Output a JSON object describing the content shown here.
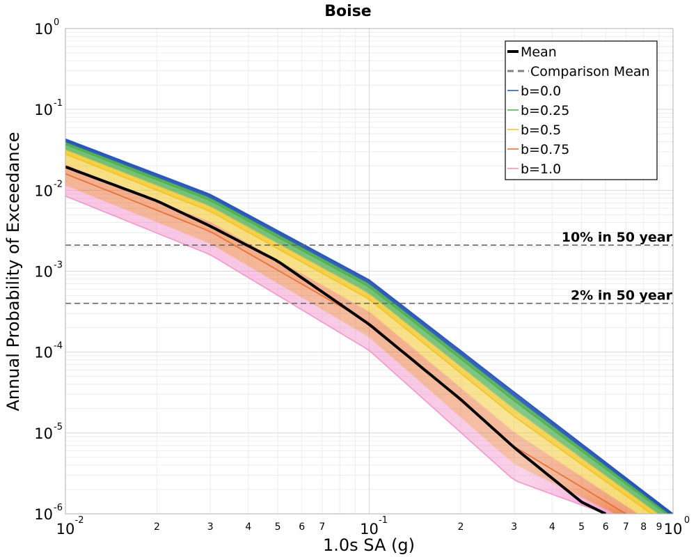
{
  "chart_data": {
    "type": "line",
    "title": "Boise",
    "xlabel": "1.0s SA (g)",
    "ylabel": "Annual Probability of Exceedance",
    "xscale": "log",
    "yscale": "log",
    "xlim": [
      0.01,
      1.0
    ],
    "ylim": [
      1e-06,
      1.0
    ],
    "grid": true,
    "legend_position": "top-right",
    "x_major_ticks": [
      {
        "value": 0.01,
        "base": "10",
        "exp": "-2"
      },
      {
        "value": 0.1,
        "base": "10",
        "exp": "-1"
      },
      {
        "value": 1.0,
        "base": "10",
        "exp": "0"
      }
    ],
    "x_minor_ticks": [
      {
        "value": 0.02,
        "label": "2"
      },
      {
        "value": 0.03,
        "label": "3"
      },
      {
        "value": 0.04,
        "label": "4"
      },
      {
        "value": 0.05,
        "label": "5"
      },
      {
        "value": 0.06,
        "label": "6"
      },
      {
        "value": 0.07,
        "label": "7"
      },
      {
        "value": 0.2,
        "label": "2"
      },
      {
        "value": 0.3,
        "label": "3"
      },
      {
        "value": 0.4,
        "label": "4"
      },
      {
        "value": 0.5,
        "label": "5"
      },
      {
        "value": 0.6,
        "label": "6"
      },
      {
        "value": 0.7,
        "label": "7"
      },
      {
        "value": 0.8,
        "label": "8"
      },
      {
        "value": 0.9,
        "label": "9"
      }
    ],
    "y_major_ticks": [
      {
        "value": 1.0,
        "base": "10",
        "exp": "0"
      },
      {
        "value": 0.1,
        "base": "10",
        "exp": "-1"
      },
      {
        "value": 0.01,
        "base": "10",
        "exp": "-2"
      },
      {
        "value": 0.001,
        "base": "10",
        "exp": "-3"
      },
      {
        "value": 0.0001,
        "base": "10",
        "exp": "-4"
      },
      {
        "value": 1e-05,
        "base": "10",
        "exp": "-5"
      },
      {
        "value": 1e-06,
        "base": "10",
        "exp": "-6"
      }
    ],
    "series": [
      {
        "name": "Mean",
        "color": "#000000",
        "style": "solid",
        "x": [
          0.01,
          0.02,
          0.03,
          0.05,
          0.1,
          0.2,
          0.3,
          0.5,
          0.6
        ],
        "y": [
          0.0195,
          0.0074,
          0.0036,
          0.00133,
          0.00022,
          2.6e-05,
          6.6e-06,
          1.4e-06,
          1e-06
        ]
      },
      {
        "name": "Comparison Mean",
        "color": "#808080",
        "style": "dashed",
        "x": [],
        "y": []
      },
      {
        "name": "b=0.0",
        "color": "#1f4fb4",
        "style": "solid",
        "x": [
          0.01,
          0.03,
          0.1,
          0.3,
          1.0
        ],
        "y": [
          0.043,
          0.0089,
          0.00078,
          3.2e-05,
          1e-06
        ]
      },
      {
        "name": "b=0.25",
        "color": "#4caf50",
        "style": "solid",
        "x": [
          0.01,
          0.03,
          0.1,
          0.3,
          0.95
        ],
        "y": [
          0.037,
          0.0075,
          0.00064,
          2.5e-05,
          1e-06
        ]
      },
      {
        "name": "b=0.5",
        "color": "#f0c419",
        "style": "solid",
        "x": [
          0.01,
          0.03,
          0.1,
          0.3,
          0.85
        ],
        "y": [
          0.028,
          0.0055,
          0.00045,
          1.6e-05,
          1e-06
        ]
      },
      {
        "name": "b=0.75",
        "color": "#e8692a",
        "style": "solid",
        "x": [
          0.01,
          0.03,
          0.1,
          0.3,
          0.7
        ],
        "y": [
          0.016,
          0.0031,
          0.00023,
          6.8e-06,
          1e-06
        ]
      },
      {
        "name": "b=1.0",
        "color": "#f28cc8",
        "style": "solid",
        "x": [
          0.01,
          0.03,
          0.1,
          0.3,
          0.6
        ],
        "y": [
          0.0085,
          0.0016,
          0.000105,
          2.6e-06,
          1e-06
        ]
      }
    ],
    "reference_lines": [
      {
        "label": "10% in 50 year",
        "y": 0.0021,
        "color": "#666666",
        "style": "dashed"
      },
      {
        "label": "2% in 50 year",
        "y": 0.0004,
        "color": "#666666",
        "style": "dashed"
      }
    ]
  }
}
